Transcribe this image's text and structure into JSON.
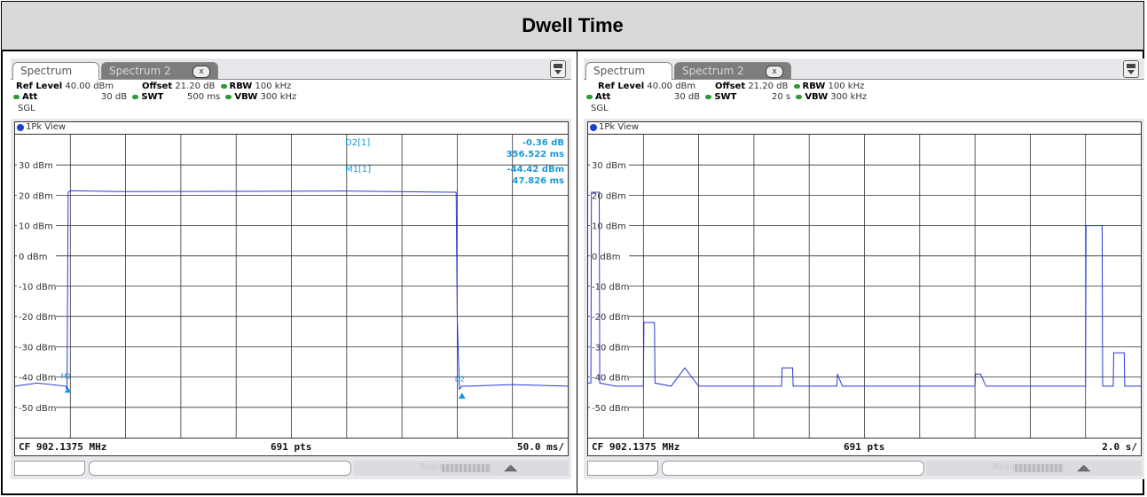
{
  "title": "Dwell Time",
  "panels": [
    {
      "tab_active": "Spectrum",
      "tab_inactive": "Spectrum 2",
      "tab_close": "x",
      "ref_level_label": "Ref Level",
      "ref_level": "40.00 dBm",
      "offset_label": "Offset",
      "offset": "21.20 dB",
      "rbw_label": "RBW",
      "rbw": "100 kHz",
      "att_label": "Att",
      "att": "30 dB",
      "swt_label": "SWT",
      "swt": "500 ms",
      "vbw_label": "VBW",
      "vbw": "300 kHz",
      "mode": "SGL",
      "view": "1Pk View",
      "cf": "CF 902.1375 MHz",
      "pts": "691 pts",
      "span": "50.0 ms/",
      "markers": [
        {
          "name": "D2[1]",
          "value": "-0.36 dB",
          "time": "356.522 ms"
        },
        {
          "name": "M1[1]",
          "value": "-44.42 dBm",
          "time": "47.826 ms"
        }
      ],
      "marker_tags": [
        "M1",
        "D2"
      ]
    },
    {
      "tab_active": "Spectrum",
      "tab_inactive": "Spectrum 2",
      "tab_close": "x",
      "ref_level_label": "Ref Level",
      "ref_level": "40.00 dBm",
      "offset_label": "Offset",
      "offset": "21.20 dB",
      "rbw_label": "RBW",
      "rbw": "100 kHz",
      "att_label": "Att",
      "att": "30 dB",
      "swt_label": "SWT",
      "swt": "20 s",
      "vbw_label": "VBW",
      "vbw": "300 kHz",
      "mode": "SGL",
      "view": "1Pk View",
      "cf": "CF 902.1375 MHz",
      "pts": "691 pts",
      "span": "2.0 s/",
      "markers": [],
      "marker_tags": []
    }
  ],
  "status": {
    "ready": "Ready"
  },
  "y_axis": {
    "labels": [
      "30 dBm",
      "20 dBm",
      "10 dBm",
      "0 dBm",
      "-10 dBm",
      "-20 dBm",
      "-30 dBm",
      "-40 dBm",
      "-50 dBm"
    ],
    "values": [
      30,
      20,
      10,
      0,
      -10,
      -20,
      -30,
      -40,
      -50
    ],
    "top_value": 40,
    "bottom_value": -60
  },
  "chart_data": [
    {
      "type": "line",
      "title": "",
      "xlabel": "",
      "ylabel": "",
      "ylim": [
        -60,
        40
      ],
      "xlim": [
        0,
        500
      ],
      "x_unit": "ms",
      "grid": true,
      "series": [
        {
          "values_desc": "",
          "x": [
            0,
            20,
            46,
            47,
            48,
            50,
            100,
            200,
            300,
            399,
            400,
            402,
            404,
            410,
            450,
            500
          ],
          "y": [
            -43,
            -42,
            -43,
            -44.4,
            21,
            21.5,
            21.2,
            21.3,
            21.4,
            21,
            -20,
            -44,
            -43,
            -43,
            -42.5,
            -43
          ]
        }
      ]
    },
    {
      "type": "line",
      "title": "",
      "xlabel": "",
      "ylabel": "",
      "ylim": [
        -60,
        40
      ],
      "xlim": [
        0,
        20
      ],
      "x_unit": "s",
      "grid": true,
      "series": [
        {
          "x": [
            0,
            0.1,
            0.12,
            0.4,
            0.42,
            1.0,
            2.0,
            2.02,
            2.2,
            2.4,
            2.42,
            3.0,
            3.5,
            4.0,
            5.0,
            6.0,
            7.0,
            7.02,
            7.2,
            7.4,
            7.42,
            8.0,
            9.0,
            9.02,
            9.2,
            10.0,
            13.0,
            14.0,
            14.02,
            14.2,
            14.4,
            15.0,
            18.0,
            18.02,
            18.6,
            18.62,
            19.0,
            19.02,
            19.4,
            19.42,
            20.0
          ],
          "y": [
            -42,
            -42,
            21,
            21,
            -42,
            -43,
            -43,
            -22,
            -22,
            -22,
            -42,
            -43,
            -37,
            -43,
            -43,
            -43,
            -43,
            -37,
            -37,
            -37,
            -43,
            -43,
            -43,
            -39,
            -43,
            -43,
            -43,
            -43,
            -39,
            -39,
            -43,
            -43,
            -43,
            10,
            10,
            -43,
            -43,
            -32,
            -32,
            -43,
            -43
          ]
        }
      ]
    }
  ]
}
